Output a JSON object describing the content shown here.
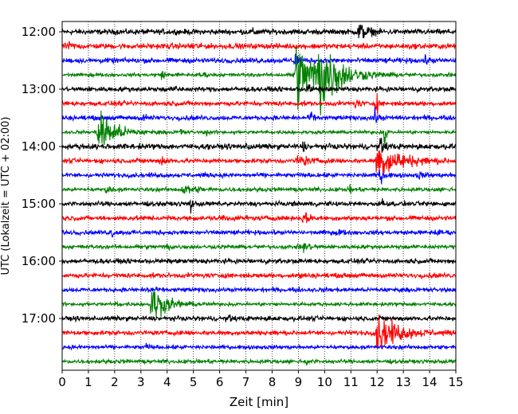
{
  "chart_data": {
    "type": "line",
    "subtype": "helicorder",
    "xlabel": "Zeit  [min]",
    "ylabel": "UTC (Lokalzeit = UTC + 02:00)",
    "xlim": [
      0,
      15
    ],
    "xticks": [
      "0",
      "1",
      "2",
      "3",
      "4",
      "5",
      "6",
      "7",
      "8",
      "9",
      "10",
      "11",
      "12",
      "13",
      "14",
      "15"
    ],
    "yticks": [
      "12:00",
      "13:00",
      "14:00",
      "15:00",
      "16:00",
      "17:00"
    ],
    "row_interval_minutes": 15,
    "row_count": 24,
    "grid": "vertical dotted lines at each minute",
    "color_cycle": [
      "#000000",
      "#ff0000",
      "#0000ff",
      "#008000"
    ],
    "series": [
      {
        "time": "12:00",
        "noise": 0.35,
        "events": [
          {
            "t": 11.3,
            "amp": 1.2,
            "dur": 0.6
          },
          {
            "t": 7.3,
            "amp": 0.4,
            "dur": 0.3
          }
        ]
      },
      {
        "time": "12:15",
        "noise": 0.35,
        "events": [
          {
            "t": 0.2,
            "amp": 0.4,
            "dur": 0.4
          },
          {
            "t": 4.9,
            "amp": 0.45,
            "dur": 0.3
          }
        ]
      },
      {
        "time": "12:30",
        "noise": 0.32,
        "events": [
          {
            "t": 8.9,
            "amp": 1.5,
            "dur": 0.2
          },
          {
            "t": 13.8,
            "amp": 0.45,
            "dur": 0.3
          }
        ]
      },
      {
        "time": "12:45",
        "noise": 0.22,
        "events": [
          {
            "t": 8.9,
            "amp": 4.5,
            "dur": 1.6
          },
          {
            "t": 9.8,
            "amp": 5.0,
            "dur": 1.2
          },
          {
            "t": 3.8,
            "amp": 0.6,
            "dur": 0.2
          },
          {
            "t": 5.3,
            "amp": 0.6,
            "dur": 0.2
          }
        ]
      },
      {
        "time": "13:00",
        "noise": 0.3,
        "events": [
          {
            "t": 4.4,
            "amp": 0.8,
            "dur": 0.1
          },
          {
            "t": 9.4,
            "amp": 0.8,
            "dur": 0.2
          }
        ]
      },
      {
        "time": "13:15",
        "noise": 0.3,
        "events": [
          {
            "t": 11.2,
            "amp": 0.7,
            "dur": 0.2
          },
          {
            "t": 12.0,
            "amp": 1.2,
            "dur": 0.1
          }
        ]
      },
      {
        "time": "13:30",
        "noise": 0.3,
        "events": [
          {
            "t": 9.5,
            "amp": 1.0,
            "dur": 0.1
          },
          {
            "t": 11.9,
            "amp": 1.1,
            "dur": 0.2
          },
          {
            "t": 3.1,
            "amp": 0.5,
            "dur": 0.2
          }
        ]
      },
      {
        "time": "13:45",
        "noise": 0.22,
        "events": [
          {
            "t": 1.4,
            "amp": 3.5,
            "dur": 1.0
          },
          {
            "t": 4.5,
            "amp": 0.5,
            "dur": 0.2
          },
          {
            "t": 5.5,
            "amp": 0.5,
            "dur": 0.1
          },
          {
            "t": 12.3,
            "amp": 2.5,
            "dur": 0.1
          }
        ]
      },
      {
        "time": "14:00",
        "noise": 0.35,
        "events": [
          {
            "t": 7.1,
            "amp": 0.9,
            "dur": 0.1
          },
          {
            "t": 9.2,
            "amp": 0.8,
            "dur": 0.1
          },
          {
            "t": 12.1,
            "amp": 1.2,
            "dur": 0.3
          }
        ]
      },
      {
        "time": "14:15",
        "noise": 0.3,
        "events": [
          {
            "t": 12.0,
            "amp": 2.5,
            "dur": 1.6
          },
          {
            "t": 9.0,
            "amp": 0.9,
            "dur": 0.6
          },
          {
            "t": 3.8,
            "amp": 0.8,
            "dur": 0.2
          }
        ]
      },
      {
        "time": "14:30",
        "noise": 0.28,
        "events": [
          {
            "t": 12.1,
            "amp": 1.0,
            "dur": 0.3
          },
          {
            "t": 13.6,
            "amp": 0.4,
            "dur": 0.3
          }
        ]
      },
      {
        "time": "14:45",
        "noise": 0.25,
        "events": [
          {
            "t": 4.6,
            "amp": 0.6,
            "dur": 1.0
          },
          {
            "t": 11.0,
            "amp": 0.7,
            "dur": 0.1
          },
          {
            "t": 1.7,
            "amp": 0.4,
            "dur": 0.3
          }
        ]
      },
      {
        "time": "15:00",
        "noise": 0.3,
        "events": [
          {
            "t": 4.9,
            "amp": 1.0,
            "dur": 0.1
          },
          {
            "t": 12.2,
            "amp": 0.8,
            "dur": 0.1
          }
        ]
      },
      {
        "time": "15:15",
        "noise": 0.3,
        "events": [
          {
            "t": 9.2,
            "amp": 0.9,
            "dur": 0.3
          },
          {
            "t": 6.1,
            "amp": 0.4,
            "dur": 0.3
          }
        ]
      },
      {
        "time": "15:30",
        "noise": 0.28,
        "events": [
          {
            "t": 1.9,
            "amp": 0.9,
            "dur": 0.1
          },
          {
            "t": 10.5,
            "amp": 0.5,
            "dur": 0.3
          },
          {
            "t": 14.2,
            "amp": 0.4,
            "dur": 0.3
          }
        ]
      },
      {
        "time": "15:45",
        "noise": 0.25,
        "events": [
          {
            "t": 9.2,
            "amp": 0.7,
            "dur": 0.4
          },
          {
            "t": 4.0,
            "amp": 0.4,
            "dur": 0.3
          }
        ]
      },
      {
        "time": "16:00",
        "noise": 0.3,
        "events": []
      },
      {
        "time": "16:15",
        "noise": 0.3,
        "events": [
          {
            "t": 9.1,
            "amp": 0.7,
            "dur": 0.1
          }
        ]
      },
      {
        "time": "16:30",
        "noise": 0.28,
        "events": [
          {
            "t": 3.3,
            "amp": 0.8,
            "dur": 0.2
          }
        ]
      },
      {
        "time": "16:45",
        "noise": 0.22,
        "events": [
          {
            "t": 3.4,
            "amp": 2.6,
            "dur": 1.0
          },
          {
            "t": 2.1,
            "amp": 0.4,
            "dur": 0.2
          }
        ]
      },
      {
        "time": "17:00",
        "noise": 0.3,
        "events": [
          {
            "t": 6.3,
            "amp": 0.4,
            "dur": 0.3
          }
        ]
      },
      {
        "time": "17:15",
        "noise": 0.3,
        "events": [
          {
            "t": 12.0,
            "amp": 2.6,
            "dur": 1.4
          }
        ]
      },
      {
        "time": "17:30",
        "noise": 0.25,
        "events": [
          {
            "t": 3.2,
            "amp": 0.4,
            "dur": 0.2
          }
        ]
      },
      {
        "time": "17:45",
        "noise": 0.25,
        "events": [
          {
            "t": 9.3,
            "amp": 0.4,
            "dur": 0.2
          }
        ]
      }
    ]
  }
}
